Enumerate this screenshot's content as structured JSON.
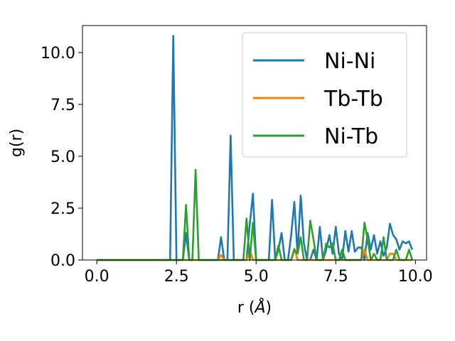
{
  "chart_data": {
    "type": "line",
    "xlabel_main": "r (",
    "xlabel_unit": "Å",
    "xlabel_close": ")",
    "ylabel": "g(r)",
    "xlim": [
      -0.45,
      10.35
    ],
    "ylim": [
      0,
      11.3
    ],
    "xticks": [
      0.0,
      2.5,
      5.0,
      7.5,
      10.0
    ],
    "xtick_labels": [
      "0.0",
      "2.5",
      "5.0",
      "7.5",
      "10.0"
    ],
    "yticks": [
      0.0,
      2.5,
      5.0,
      7.5,
      10.0
    ],
    "ytick_labels": [
      "0.0",
      "2.5",
      "5.0",
      "7.5",
      "10.0"
    ],
    "grid": false,
    "legend_position": "top-right",
    "series": [
      {
        "name": "Ni-Ni",
        "color": "#1f77b4",
        "points": [
          [
            0,
            0
          ],
          [
            2.3,
            0
          ],
          [
            2.4,
            10.8
          ],
          [
            2.5,
            0
          ],
          [
            2.7,
            0
          ],
          [
            2.8,
            1.3
          ],
          [
            2.9,
            0
          ],
          [
            3.8,
            0
          ],
          [
            3.9,
            1.1
          ],
          [
            4.0,
            0
          ],
          [
            4.1,
            0
          ],
          [
            4.2,
            6.0
          ],
          [
            4.3,
            0
          ],
          [
            4.7,
            0
          ],
          [
            4.8,
            1.7
          ],
          [
            4.9,
            3.2
          ],
          [
            5.0,
            0
          ],
          [
            5.4,
            0
          ],
          [
            5.5,
            2.9
          ],
          [
            5.6,
            0
          ],
          [
            5.7,
            0.5
          ],
          [
            5.8,
            1.3
          ],
          [
            5.9,
            0
          ],
          [
            6.0,
            0
          ],
          [
            6.1,
            1.2
          ],
          [
            6.2,
            2.8
          ],
          [
            6.3,
            0.3
          ],
          [
            6.4,
            3.1
          ],
          [
            6.5,
            0.8
          ],
          [
            6.6,
            0
          ],
          [
            6.7,
            0
          ],
          [
            6.8,
            0.5
          ],
          [
            6.9,
            0
          ],
          [
            7.0,
            1.6
          ],
          [
            7.1,
            0
          ],
          [
            7.2,
            0.5
          ],
          [
            7.3,
            1.2
          ],
          [
            7.4,
            0.3
          ],
          [
            7.5,
            1.6
          ],
          [
            7.6,
            0.3
          ],
          [
            7.7,
            0
          ],
          [
            7.8,
            1.4
          ],
          [
            7.9,
            0.4
          ],
          [
            8.0,
            1.4
          ],
          [
            8.1,
            0.4
          ],
          [
            8.2,
            0.6
          ],
          [
            8.3,
            0.6
          ],
          [
            8.4,
            0
          ],
          [
            8.5,
            1.3
          ],
          [
            8.6,
            0.5
          ],
          [
            8.7,
            1.2
          ],
          [
            8.8,
            0.3
          ],
          [
            8.9,
            0.9
          ],
          [
            9.0,
            0.2
          ],
          [
            9.1,
            0.6
          ],
          [
            9.2,
            1.75
          ],
          [
            9.3,
            1.2
          ],
          [
            9.4,
            1.0
          ],
          [
            9.5,
            0.5
          ],
          [
            9.6,
            0.9
          ],
          [
            9.7,
            0.8
          ],
          [
            9.8,
            0.9
          ],
          [
            9.9,
            0.5
          ]
        ]
      },
      {
        "name": "Tb-Tb",
        "color": "#ff7f0e",
        "points": [
          [
            0,
            0
          ],
          [
            3.8,
            0
          ],
          [
            3.9,
            0.25
          ],
          [
            4.0,
            0
          ],
          [
            4.7,
            0
          ],
          [
            4.8,
            0.5
          ],
          [
            4.9,
            0
          ],
          [
            6.1,
            0
          ],
          [
            6.2,
            0.55
          ],
          [
            6.3,
            0
          ],
          [
            8.3,
            0
          ],
          [
            8.4,
            0.5
          ],
          [
            8.5,
            0
          ],
          [
            9.1,
            0
          ],
          [
            9.2,
            0.3
          ],
          [
            9.3,
            0.3
          ],
          [
            9.4,
            0
          ],
          [
            9.9,
            0
          ]
        ]
      },
      {
        "name": "Ni-Tb",
        "color": "#2ca02c",
        "points": [
          [
            0,
            0
          ],
          [
            2.7,
            0
          ],
          [
            2.8,
            2.65
          ],
          [
            2.9,
            0
          ],
          [
            3.0,
            0
          ],
          [
            3.1,
            4.35
          ],
          [
            3.2,
            0
          ],
          [
            4.6,
            0
          ],
          [
            4.7,
            2.0
          ],
          [
            4.8,
            0
          ],
          [
            4.9,
            1.8
          ],
          [
            5.0,
            0
          ],
          [
            5.6,
            0
          ],
          [
            5.7,
            0.7
          ],
          [
            5.8,
            0
          ],
          [
            6.1,
            0
          ],
          [
            6.2,
            0.5
          ],
          [
            6.3,
            0.3
          ],
          [
            6.4,
            1.1
          ],
          [
            6.5,
            0
          ],
          [
            6.6,
            0
          ],
          [
            6.7,
            1.9
          ],
          [
            6.8,
            1.0
          ],
          [
            6.9,
            0
          ],
          [
            7.1,
            0
          ],
          [
            7.2,
            0.8
          ],
          [
            7.3,
            0.6
          ],
          [
            7.4,
            0.8
          ],
          [
            7.5,
            0
          ],
          [
            7.6,
            0
          ],
          [
            7.7,
            0.5
          ],
          [
            7.8,
            0
          ],
          [
            8.3,
            0
          ],
          [
            8.4,
            1.8
          ],
          [
            8.5,
            1.0
          ],
          [
            8.6,
            0
          ],
          [
            8.7,
            0.3
          ],
          [
            8.8,
            0
          ],
          [
            8.9,
            0
          ],
          [
            9.0,
            1.1
          ],
          [
            9.1,
            0
          ],
          [
            9.3,
            0
          ],
          [
            9.4,
            0.5
          ],
          [
            9.5,
            0
          ],
          [
            9.7,
            0
          ],
          [
            9.8,
            0.5
          ],
          [
            9.9,
            0
          ]
        ]
      }
    ]
  }
}
